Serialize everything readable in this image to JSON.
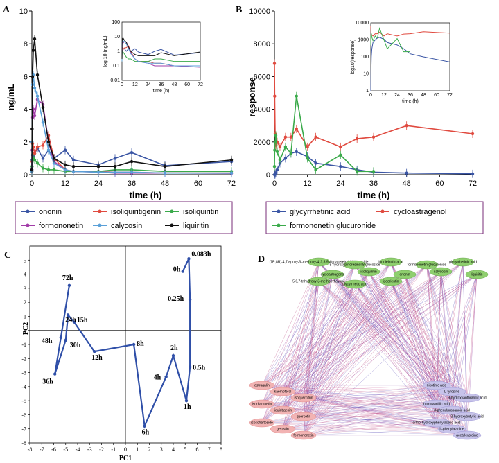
{
  "chart_data": [
    {
      "panel": "A",
      "type": "line",
      "xlabel": "time (h)",
      "ylabel": "ng/mL",
      "xlim": [
        0,
        72
      ],
      "ylim": [
        0,
        10
      ],
      "xticks": [
        0,
        12,
        24,
        36,
        48,
        60,
        72
      ],
      "yticks": [
        0,
        2,
        4,
        6,
        8,
        10
      ],
      "series": [
        {
          "name": "ononin",
          "color": "#3a55a4",
          "x": [
            0,
            0.083,
            0.25,
            0.5,
            1,
            2,
            4,
            6,
            8,
            12,
            15,
            24,
            30,
            36,
            48,
            72
          ],
          "y": [
            0.3,
            0.9,
            1.2,
            1.0,
            1.3,
            1.6,
            1.0,
            1.5,
            1.0,
            1.5,
            0.9,
            0.6,
            1.0,
            1.35,
            0.55,
            0.8
          ]
        },
        {
          "name": "isoliquiritigenin",
          "color": "#e04a3f",
          "x": [
            0,
            0.083,
            0.25,
            0.5,
            1,
            2,
            4,
            6,
            8,
            12,
            15,
            24,
            30,
            36,
            48,
            72
          ],
          "y": [
            0.2,
            0.8,
            1.9,
            1.7,
            1.3,
            1.7,
            1.8,
            2.4,
            1.0,
            0.3,
            0.2,
            0.2,
            0.15,
            0.15,
            0.1,
            0.1
          ]
        },
        {
          "name": "isoliquiritin",
          "color": "#3aaa4a",
          "x": [
            0,
            0.083,
            0.25,
            0.5,
            1,
            2,
            4,
            6,
            8,
            12,
            15,
            24,
            30,
            36,
            48,
            72
          ],
          "y": [
            0.2,
            0.5,
            0.9,
            1.0,
            0.9,
            0.7,
            0.4,
            0.3,
            0.3,
            0.2,
            0.2,
            0.2,
            0.3,
            0.3,
            0.2,
            0.2
          ]
        },
        {
          "name": "formononetin",
          "color": "#a23ca8",
          "x": [
            0,
            0.083,
            0.25,
            0.5,
            1,
            2,
            4,
            6,
            8,
            12,
            15,
            24,
            30,
            36,
            48,
            72
          ],
          "y": [
            0.3,
            1.5,
            3.5,
            4.0,
            3.6,
            4.6,
            4.3,
            2.0,
            0.8,
            0.3,
            0.2,
            0.15,
            0.1,
            0.1,
            0.1,
            0.08
          ]
        },
        {
          "name": "calycosin",
          "color": "#5aa0d8",
          "x": [
            0,
            0.083,
            0.25,
            0.5,
            1,
            2,
            4,
            6,
            8,
            12,
            15,
            24,
            30,
            36,
            48,
            72
          ],
          "y": [
            0.2,
            2.0,
            5.5,
            6.1,
            5.3,
            4.8,
            3.2,
            1.5,
            0.7,
            0.3,
            0.2,
            0.15,
            0.15,
            0.15,
            0.1,
            0.1
          ]
        },
        {
          "name": "liquiritin",
          "color": "#111111",
          "x": [
            0,
            0.083,
            0.25,
            0.5,
            1,
            2,
            4,
            6,
            8,
            12,
            15,
            24,
            30,
            36,
            48,
            72
          ],
          "y": [
            0.3,
            2.8,
            6.0,
            7.6,
            8.3,
            6.1,
            4.1,
            2.0,
            1.0,
            0.6,
            0.5,
            0.5,
            0.5,
            0.8,
            0.5,
            0.9
          ]
        }
      ],
      "inset": {
        "xlabel": "time (h)",
        "ylabel": "log 10 (ng/mL)",
        "xticks": [
          0,
          12,
          24,
          36,
          48,
          60,
          72
        ],
        "ytick_labels": [
          "0.01",
          "0.1",
          "1",
          "10",
          "100"
        ]
      }
    },
    {
      "panel": "B",
      "type": "line",
      "xlabel": "time (h)",
      "ylabel": "response",
      "xlim": [
        0,
        72
      ],
      "ylim": [
        0,
        10000
      ],
      "xticks": [
        0,
        12,
        24,
        36,
        48,
        60,
        72
      ],
      "yticks": [
        0,
        2000,
        4000,
        6000,
        8000,
        10000
      ],
      "series": [
        {
          "name": "glycyrrhetinic acid",
          "color": "#3a55a4",
          "x": [
            0,
            0.25,
            0.5,
            1,
            2,
            4,
            6,
            8,
            12,
            15,
            24,
            30,
            36,
            48,
            72
          ],
          "y": [
            0,
            20,
            100,
            300,
            700,
            1000,
            1300,
            1400,
            1100,
            700,
            500,
            300,
            150,
            100,
            50
          ]
        },
        {
          "name": "cycloastragenol",
          "color": "#e04a3f",
          "x": [
            0,
            0.083,
            0.25,
            0.5,
            1,
            2,
            4,
            6,
            8,
            12,
            15,
            24,
            30,
            36,
            48,
            72
          ],
          "y": [
            6800,
            4800,
            2500,
            1800,
            2000,
            1700,
            2300,
            2300,
            2800,
            1700,
            2300,
            1700,
            2200,
            2300,
            3000,
            2500
          ]
        },
        {
          "name": "formononetin glucuronide",
          "color": "#3aaa4a",
          "x": [
            0,
            0.083,
            0.25,
            0.5,
            1,
            2,
            4,
            6,
            8,
            12,
            15,
            24,
            30,
            36
          ],
          "y": [
            500,
            1500,
            2000,
            2400,
            1400,
            900,
            1700,
            1300,
            4800,
            1000,
            300,
            1200,
            200,
            200
          ]
        }
      ],
      "inset": {
        "xlabel": "time (h)",
        "ylabel": "log10(response)",
        "xticks": [
          0,
          12,
          24,
          36,
          48,
          60,
          72
        ],
        "ytick_labels": [
          "1",
          "10",
          "100",
          "1000",
          "10000"
        ]
      }
    },
    {
      "panel": "C",
      "type": "scatter",
      "xlabel": "PC1",
      "ylabel": "PC2",
      "xlim": [
        -8,
        8
      ],
      "ylim": [
        -8,
        6
      ],
      "xticks": [
        -8,
        -7,
        -6,
        -5,
        -4,
        -3,
        -2,
        -1,
        0,
        1,
        2,
        3,
        4,
        5,
        6,
        7,
        8
      ],
      "yticks": [
        -8,
        -7,
        -6,
        -5,
        -4,
        -3,
        -2,
        -1,
        0,
        1,
        2,
        3,
        4,
        5
      ],
      "points": [
        {
          "label": "0h",
          "x": 4.8,
          "y": 4.2
        },
        {
          "label": "0.083h",
          "x": 5.3,
          "y": 5.1
        },
        {
          "label": "0.25h",
          "x": 5.4,
          "y": 2.2
        },
        {
          "label": "0.5h",
          "x": 5.4,
          "y": -2.6
        },
        {
          "label": "1h",
          "x": 5.1,
          "y": -5.0
        },
        {
          "label": "2h",
          "x": 4.0,
          "y": -1.8
        },
        {
          "label": "4h",
          "x": 3.4,
          "y": -3.3
        },
        {
          "label": "6h",
          "x": 1.6,
          "y": -6.8
        },
        {
          "label": "8h",
          "x": 0.7,
          "y": -1.0
        },
        {
          "label": "12h",
          "x": -2.6,
          "y": -1.5
        },
        {
          "label": "15h",
          "x": -4.3,
          "y": 0.6
        },
        {
          "label": "24h",
          "x": -4.8,
          "y": 1.1
        },
        {
          "label": "30h",
          "x": -5.0,
          "y": -0.7
        },
        {
          "label": "36h",
          "x": -5.9,
          "y": -3.1
        },
        {
          "label": "48h",
          "x": -5.4,
          "y": -0.5
        },
        {
          "label": "72h",
          "x": -4.7,
          "y": 3.2
        }
      ]
    },
    {
      "panel": "D",
      "type": "table",
      "description_labels": {
        "top_nodes": [
          "(7R,8R)-4,7-epoxy-3'-methoxy-4',3,8,9'-lignanetetrol 9'-glucoside",
          "8-hydroxypinoresinol 8-glucoside",
          "indolelactic acid",
          "formononetin glucuronide",
          "glycyrrhetinic acid",
          "cycloastragenol",
          "isoliquiritin",
          "ononin",
          "calycosin",
          "liquiritin",
          "5,6,7-trihydroxy-3-methoxyflavone",
          "glycyrrhetic acid",
          "isoorientin"
        ],
        "left_nodes": [
          "astragalin",
          "kaempferol",
          "isoquercitrin",
          "isorhamnetin",
          "liquiritigenin",
          "quercetin",
          "isoschaftoside",
          "genistin",
          "formononetin"
        ],
        "right_nodes": [
          "nicotinic acid",
          "L-tyrosine",
          "3-hydroxyanthranilic acid",
          "homovanillic acid",
          "3-phenylpropanoic acid",
          "3-hydroxybutyric acid",
          "ortho-hydroxyphenylacetic acid",
          "L-phenylalanine",
          "acetylcysteine"
        ]
      }
    }
  ],
  "legendA": [
    "ononin",
    "isoliquiritigenin",
    "isoliquiritin",
    "formononetin",
    "calycosin",
    "liquiritin"
  ],
  "legendB": [
    "glycyrrhetinic acid",
    "cycloastragenol",
    "formononetin glucuronide"
  ],
  "panels": {
    "a": "A",
    "b": "B",
    "c": "C",
    "d": "D"
  }
}
